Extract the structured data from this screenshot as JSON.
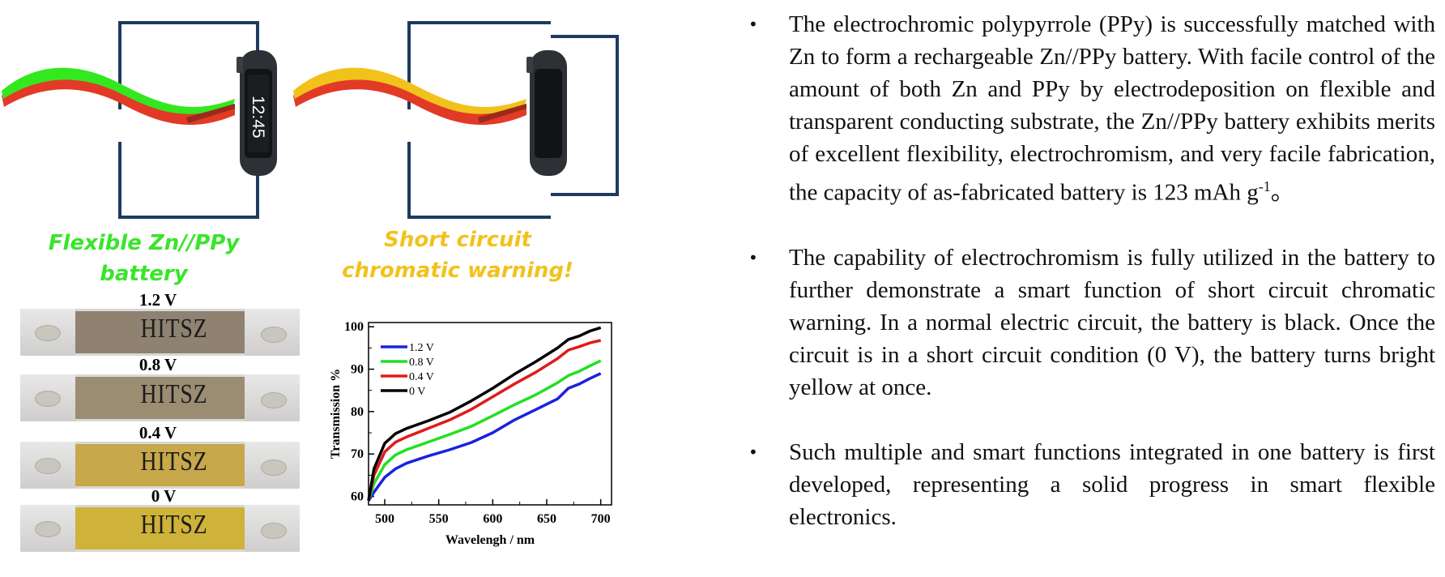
{
  "captions": {
    "flexible_line1": "Flexible Zn//PPy",
    "flexible_line2": "battery",
    "short_line1": "Short circuit",
    "short_line2": "chromatic warning!"
  },
  "watch": {
    "time": "12:45"
  },
  "strips": [
    {
      "voltage": "1.2 V",
      "label": "HITSZ",
      "color": "#8f8271"
    },
    {
      "voltage": "0.8 V",
      "label": "HITSZ",
      "color": "#9b8d72"
    },
    {
      "voltage": "0.4 V",
      "label": "HITSZ",
      "color": "#c7a84a"
    },
    {
      "voltage": "0 V",
      "label": "HITSZ",
      "color": "#cfb23a"
    }
  ],
  "colors": {
    "green": "#33e81f",
    "yellow": "#f1c21b",
    "red": "#e23a26",
    "wire": "#1f3a5f",
    "caption_green": "#39e52a",
    "caption_yellow": "#f2c21c"
  },
  "chart_data": {
    "type": "line",
    "xlabel": "Wavelengh / nm",
    "ylabel": "Transmission %",
    "xlim": [
      485,
      710
    ],
    "ylim": [
      58,
      101
    ],
    "xticks": [
      500,
      550,
      600,
      650,
      700
    ],
    "yticks": [
      60,
      70,
      80,
      90,
      100
    ],
    "legend_position": "top-left",
    "series": [
      {
        "name": "1.2 V",
        "color": "#1a22e0",
        "x": [
          485,
          490,
          500,
          510,
          520,
          540,
          560,
          580,
          600,
          620,
          640,
          660,
          670,
          680,
          690,
          700
        ],
        "y": [
          59,
          61,
          64.5,
          66.5,
          67.8,
          69.5,
          71,
          72.7,
          75,
          78,
          80.5,
          83,
          85.5,
          86.5,
          87.8,
          89
        ]
      },
      {
        "name": "0.8 V",
        "color": "#22e022",
        "x": [
          485,
          490,
          500,
          510,
          520,
          540,
          560,
          580,
          600,
          620,
          640,
          660,
          670,
          680,
          690,
          700
        ],
        "y": [
          59,
          63,
          67.5,
          69.8,
          71,
          72.8,
          74.6,
          76.5,
          79,
          81.6,
          84,
          86.8,
          88.5,
          89.5,
          90.8,
          92
        ]
      },
      {
        "name": "0.4 V",
        "color": "#e01a1a",
        "x": [
          485,
          490,
          500,
          510,
          520,
          540,
          560,
          580,
          600,
          620,
          640,
          660,
          670,
          680,
          690,
          700
        ],
        "y": [
          59,
          65,
          70.5,
          72.8,
          74,
          76,
          78,
          80.5,
          83.5,
          86.5,
          89.3,
          92.5,
          94.5,
          95.3,
          96.2,
          96.8
        ]
      },
      {
        "name": "0 V",
        "color": "#000000",
        "x": [
          485,
          490,
          500,
          510,
          520,
          540,
          560,
          580,
          600,
          620,
          640,
          660,
          670,
          680,
          690,
          700
        ],
        "y": [
          59,
          66.5,
          72.5,
          74.8,
          76,
          77.8,
          79.8,
          82.5,
          85.5,
          88.8,
          91.8,
          95,
          97,
          97.8,
          99,
          99.8
        ]
      }
    ]
  },
  "bullets": [
    {
      "text": "The electrochromic polypyrrole (PPy) is successfully matched with Zn to form a rechargeable Zn//PPy battery. With facile control of the amount of both Zn and PPy by electrodeposition on flexible and transparent conducting substrate, the Zn//PPy battery exhibits merits of excellent flexibility, electrochromism, and very facile fabrication, the capacity of as-fabricated battery is 123 mAh g",
      "sup": "-1",
      "tail": "。"
    },
    {
      "text": "The capability of electrochromism is fully utilized in the battery to further demonstrate a smart function of short circuit chromatic warning. In a normal electric circuit, the battery is black. Once the circuit is in a short circuit condition (0 V), the battery turns bright yellow at once."
    },
    {
      "text": "Such multiple and smart functions integrated in one battery is first developed, representing a solid progress in smart flexible electronics."
    }
  ]
}
